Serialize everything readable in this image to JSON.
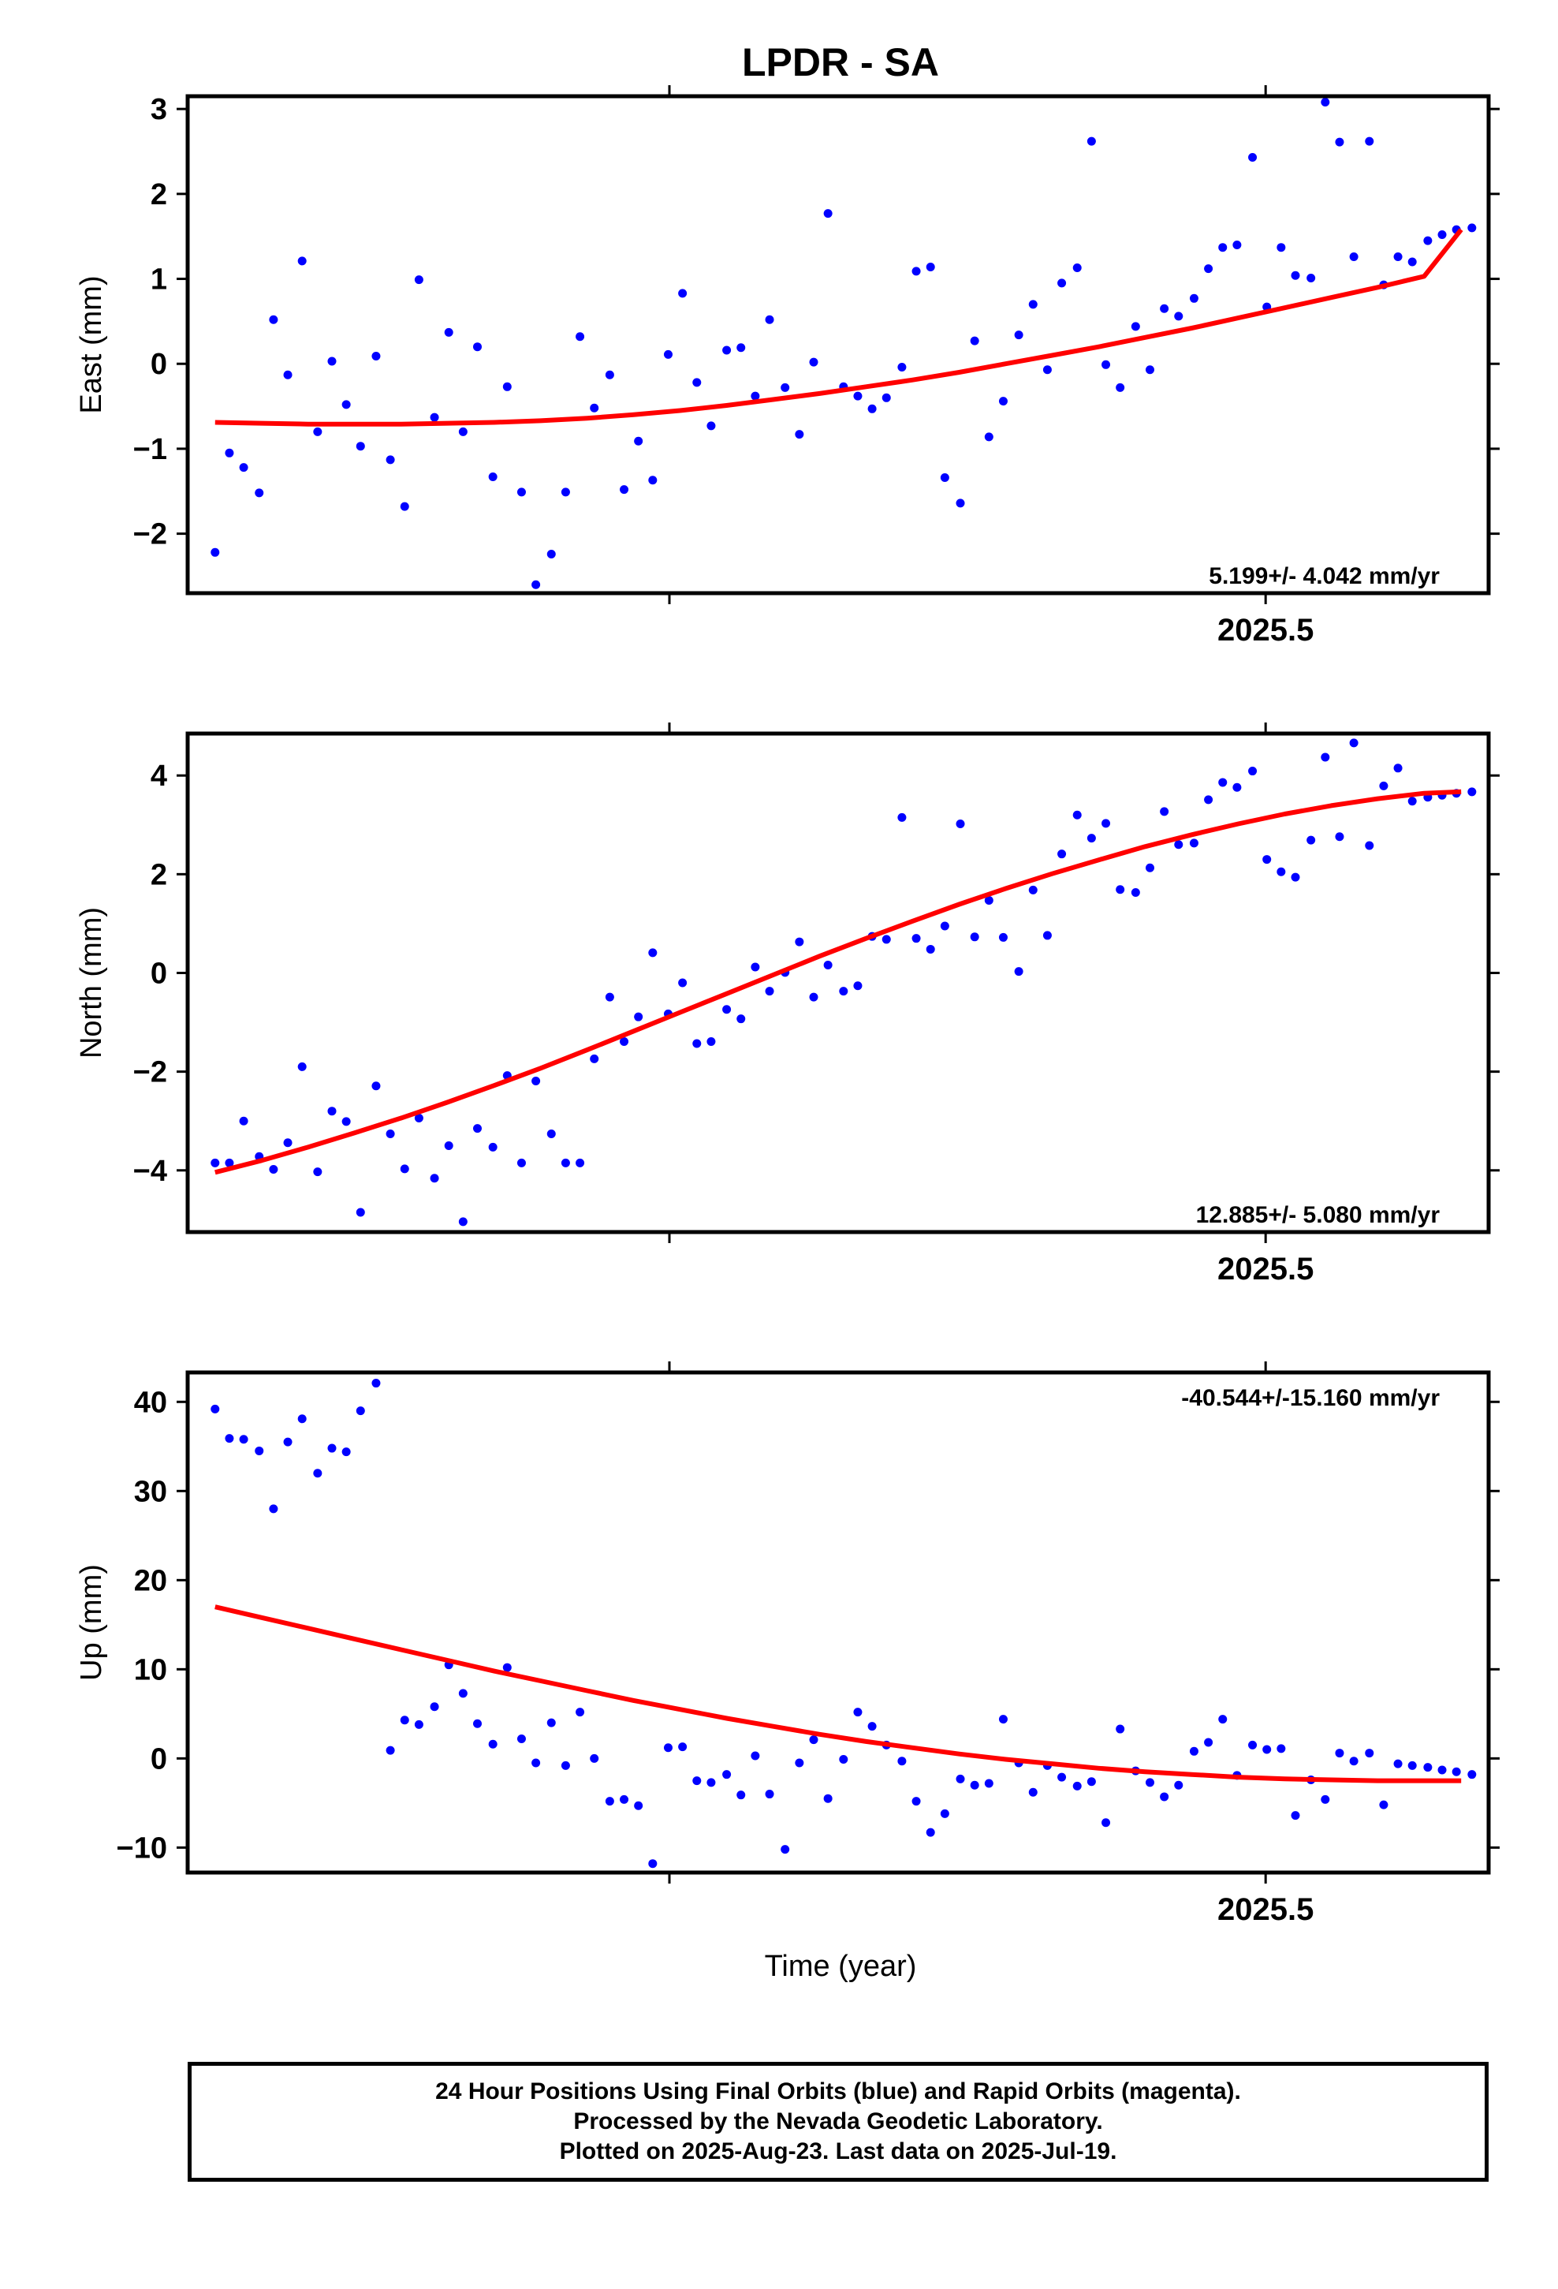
{
  "title": "LPDR - SA",
  "xlabel": "Time (year)",
  "colors": {
    "points": "#0000ff",
    "fit": "#ff0000",
    "frame": "#000000"
  },
  "footer": {
    "line1": "24 Hour Positions Using Final Orbits (blue) and Rapid Orbits (magenta).",
    "line2": "Processed by the Nevada Geodetic Laboratory.",
    "line3": "Plotted on 2025-Aug-23. Last data on 2025-Jul-19."
  },
  "chart_data": [
    {
      "type": "scatter",
      "name": "east",
      "ylabel": "East (mm)",
      "rate_label": "5.199+/- 4.042 mm/yr",
      "xlim": [
        2024.596,
        2025.687
      ],
      "ylim": [
        -2.7,
        3.15
      ],
      "yticks": [
        -2,
        -1,
        0,
        1,
        2,
        3
      ],
      "ytick_labels": [
        "−2",
        "−1",
        "0",
        "1",
        "2",
        "3"
      ],
      "xticks": [
        2025.0,
        2025.5
      ],
      "xtick_labels": [
        "",
        "2025.5"
      ],
      "series": [
        {
          "type": "scatter",
          "x": [
            2024.619,
            2024.631,
            2024.643,
            2024.656,
            2024.668,
            2024.68,
            2024.692,
            2024.705,
            2024.717,
            2024.729,
            2024.741,
            2024.754,
            2024.766,
            2024.778,
            2024.79,
            2024.803,
            2024.815,
            2024.827,
            2024.839,
            2024.852,
            2024.864,
            2024.876,
            2024.888,
            2024.901,
            2024.913,
            2024.925,
            2024.937,
            2024.95,
            2024.962,
            2024.974,
            2024.986,
            2024.999,
            2025.011,
            2025.023,
            2025.035,
            2025.048,
            2025.06,
            2025.072,
            2025.084,
            2025.097,
            2025.109,
            2025.121,
            2025.133,
            2025.146,
            2025.158,
            2025.17,
            2025.182,
            2025.195,
            2025.207,
            2025.219,
            2025.231,
            2025.244,
            2025.256,
            2025.268,
            2025.28,
            2025.293,
            2025.305,
            2025.317,
            2025.329,
            2025.342,
            2025.354,
            2025.366,
            2025.378,
            2025.391,
            2025.403,
            2025.415,
            2025.427,
            2025.44,
            2025.452,
            2025.464,
            2025.476,
            2025.489,
            2025.501,
            2025.513,
            2025.525,
            2025.538,
            2025.55,
            2025.562,
            2025.574,
            2025.587,
            2025.599,
            2025.611,
            2025.623,
            2025.636,
            2025.648,
            2025.66,
            2025.673
          ],
          "y": [
            -2.22,
            -1.05,
            -1.22,
            -1.52,
            0.52,
            -0.13,
            1.21,
            -0.8,
            0.03,
            -0.48,
            -0.97,
            0.09,
            -1.13,
            -1.68,
            0.99,
            -0.63,
            0.37,
            -0.8,
            0.2,
            -1.33,
            -0.27,
            -1.51,
            -2.6,
            -2.24,
            -1.51,
            0.32,
            -0.52,
            -0.13,
            -1.48,
            -0.91,
            -1.37,
            0.11,
            0.83,
            -0.22,
            -0.73,
            0.16,
            0.19,
            -0.38,
            0.52,
            -0.28,
            -0.83,
            0.02,
            1.77,
            -0.27,
            -0.38,
            -0.53,
            -0.4,
            -0.04,
            1.09,
            1.14,
            -1.34,
            -1.64,
            0.27,
            -0.86,
            -0.44,
            0.34,
            0.7,
            -0.07,
            0.95,
            1.13,
            2.62,
            -0.01,
            -0.28,
            0.44,
            -0.07,
            0.65,
            0.56,
            0.77,
            1.12,
            1.37,
            1.4,
            2.43,
            0.67,
            1.37,
            1.04,
            1.01,
            3.08,
            2.61,
            1.26,
            2.62,
            0.93,
            1.26,
            1.2,
            1.45,
            1.52,
            1.58,
            1.6
          ]
        },
        {
          "type": "line",
          "x": [
            2024.619,
            2024.658,
            2024.697,
            2024.736,
            2024.775,
            2024.814,
            2024.853,
            2024.892,
            2024.931,
            2024.97,
            2025.009,
            2025.048,
            2025.087,
            2025.126,
            2025.165,
            2025.204,
            2025.243,
            2025.282,
            2025.321,
            2025.36,
            2025.399,
            2025.438,
            2025.477,
            2025.516,
            2025.555,
            2025.594,
            2025.633,
            2025.664
          ],
          "y": [
            -0.69,
            -0.7,
            -0.71,
            -0.71,
            -0.71,
            -0.7,
            -0.69,
            -0.67,
            -0.64,
            -0.6,
            -0.55,
            -0.49,
            -0.42,
            -0.35,
            -0.27,
            -0.19,
            -0.1,
            0.0,
            0.1,
            0.2,
            0.31,
            0.42,
            0.54,
            0.66,
            0.78,
            0.9,
            1.03,
            1.58
          ]
        }
      ]
    },
    {
      "type": "scatter",
      "name": "north",
      "ylabel": "North (mm)",
      "rate_label": "12.885+/- 5.080 mm/yr",
      "xlim": [
        2024.596,
        2025.687
      ],
      "ylim": [
        -5.25,
        4.85
      ],
      "yticks": [
        -4,
        -2,
        0,
        2,
        4
      ],
      "ytick_labels": [
        "−4",
        "−2",
        "0",
        "2",
        "4"
      ],
      "xticks": [
        2025.0,
        2025.5
      ],
      "xtick_labels": [
        "",
        "2025.5"
      ],
      "series": [
        {
          "type": "scatter",
          "x": [
            2024.619,
            2024.631,
            2024.643,
            2024.656,
            2024.668,
            2024.68,
            2024.692,
            2024.705,
            2024.717,
            2024.729,
            2024.741,
            2024.754,
            2024.766,
            2024.778,
            2024.79,
            2024.803,
            2024.815,
            2024.827,
            2024.839,
            2024.852,
            2024.864,
            2024.876,
            2024.888,
            2024.901,
            2024.913,
            2024.925,
            2024.937,
            2024.95,
            2024.962,
            2024.974,
            2024.986,
            2024.999,
            2025.011,
            2025.023,
            2025.035,
            2025.048,
            2025.06,
            2025.072,
            2025.084,
            2025.097,
            2025.109,
            2025.121,
            2025.133,
            2025.146,
            2025.158,
            2025.17,
            2025.182,
            2025.195,
            2025.207,
            2025.219,
            2025.231,
            2025.244,
            2025.256,
            2025.268,
            2025.28,
            2025.293,
            2025.305,
            2025.317,
            2025.329,
            2025.342,
            2025.354,
            2025.366,
            2025.378,
            2025.391,
            2025.403,
            2025.415,
            2025.427,
            2025.44,
            2025.452,
            2025.464,
            2025.476,
            2025.489,
            2025.501,
            2025.513,
            2025.525,
            2025.538,
            2025.55,
            2025.562,
            2025.574,
            2025.587,
            2025.599,
            2025.611,
            2025.623,
            2025.636,
            2025.648,
            2025.66,
            2025.673
          ],
          "y": [
            -3.85,
            -3.85,
            -3.0,
            -3.72,
            -3.98,
            -3.44,
            -1.9,
            -4.03,
            -2.8,
            -3.01,
            -4.85,
            -2.29,
            -3.26,
            -3.97,
            -2.94,
            -4.16,
            -3.5,
            -5.04,
            -3.15,
            -3.53,
            -2.08,
            -3.85,
            -2.19,
            -3.26,
            -3.85,
            -3.85,
            -1.74,
            -0.49,
            -1.39,
            -0.89,
            0.41,
            -0.83,
            -0.2,
            -1.43,
            -1.39,
            -0.74,
            -0.93,
            0.12,
            -0.37,
            0.01,
            0.63,
            -0.49,
            0.16,
            -0.37,
            -0.26,
            0.74,
            0.68,
            3.15,
            0.7,
            0.48,
            0.95,
            3.02,
            0.73,
            1.47,
            0.72,
            0.03,
            1.68,
            0.76,
            2.41,
            3.2,
            2.73,
            3.03,
            1.69,
            1.63,
            2.13,
            3.27,
            2.6,
            2.63,
            3.51,
            3.86,
            3.76,
            4.09,
            2.3,
            2.05,
            1.94,
            2.69,
            4.37,
            2.76,
            4.66,
            2.58,
            3.79,
            4.15,
            3.48,
            3.56,
            3.6,
            3.64,
            3.67
          ]
        },
        {
          "type": "line",
          "x": [
            2024.619,
            2024.658,
            2024.697,
            2024.736,
            2024.775,
            2024.814,
            2024.853,
            2024.892,
            2024.931,
            2024.97,
            2025.009,
            2025.048,
            2025.087,
            2025.126,
            2025.165,
            2025.204,
            2025.243,
            2025.282,
            2025.321,
            2025.36,
            2025.399,
            2025.438,
            2025.477,
            2025.516,
            2025.555,
            2025.594,
            2025.633,
            2025.664
          ],
          "y": [
            -4.04,
            -3.8,
            -3.53,
            -3.24,
            -2.94,
            -2.62,
            -2.28,
            -1.93,
            -1.56,
            -1.18,
            -0.8,
            -0.42,
            -0.04,
            0.34,
            0.7,
            1.05,
            1.39,
            1.71,
            2.01,
            2.29,
            2.56,
            2.8,
            3.02,
            3.22,
            3.39,
            3.53,
            3.64,
            3.67
          ]
        }
      ]
    },
    {
      "type": "scatter",
      "name": "up",
      "ylabel": "Up (mm)",
      "rate_label": "-40.544+/-15.160 mm/yr",
      "xlim": [
        2024.596,
        2025.687
      ],
      "ylim": [
        -12.8,
        43.3
      ],
      "yticks": [
        -10,
        0,
        10,
        20,
        30,
        40
      ],
      "ytick_labels": [
        "−10",
        "0",
        "10",
        "20",
        "30",
        "40"
      ],
      "xticks": [
        2025.0,
        2025.5
      ],
      "xtick_labels": [
        "",
        "2025.5"
      ],
      "series": [
        {
          "type": "scatter",
          "x": [
            2024.619,
            2024.631,
            2024.643,
            2024.656,
            2024.668,
            2024.68,
            2024.692,
            2024.705,
            2024.717,
            2024.729,
            2024.741,
            2024.754,
            2024.766,
            2024.778,
            2024.79,
            2024.803,
            2024.815,
            2024.827,
            2024.839,
            2024.852,
            2024.864,
            2024.876,
            2024.888,
            2024.901,
            2024.913,
            2024.925,
            2024.937,
            2024.95,
            2024.962,
            2024.974,
            2024.986,
            2024.999,
            2025.011,
            2025.023,
            2025.035,
            2025.048,
            2025.06,
            2025.072,
            2025.084,
            2025.097,
            2025.109,
            2025.121,
            2025.133,
            2025.146,
            2025.158,
            2025.17,
            2025.182,
            2025.195,
            2025.207,
            2025.219,
            2025.231,
            2025.244,
            2025.256,
            2025.268,
            2025.28,
            2025.293,
            2025.305,
            2025.317,
            2025.329,
            2025.342,
            2025.354,
            2025.366,
            2025.378,
            2025.391,
            2025.403,
            2025.415,
            2025.427,
            2025.44,
            2025.452,
            2025.464,
            2025.476,
            2025.489,
            2025.501,
            2025.513,
            2025.525,
            2025.538,
            2025.55,
            2025.562,
            2025.574,
            2025.587,
            2025.599,
            2025.611,
            2025.623,
            2025.636,
            2025.648,
            2025.66,
            2025.673
          ],
          "y": [
            39.2,
            35.9,
            35.8,
            34.5,
            28.0,
            35.5,
            38.1,
            32.0,
            34.8,
            34.4,
            39.0,
            42.1,
            0.9,
            4.3,
            3.8,
            5.8,
            10.5,
            7.3,
            3.9,
            1.6,
            10.2,
            2.2,
            -0.5,
            4.0,
            -0.8,
            5.2,
            0.0,
            -4.8,
            -4.6,
            -5.3,
            -11.8,
            1.2,
            1.3,
            -2.5,
            -2.7,
            -1.8,
            -4.1,
            0.3,
            -4.0,
            -10.2,
            -0.5,
            2.1,
            -4.5,
            -0.1,
            5.2,
            3.6,
            1.5,
            -0.3,
            -4.8,
            -8.3,
            -6.2,
            -2.3,
            -3.0,
            -2.8,
            4.4,
            -0.5,
            -3.8,
            -0.8,
            -2.1,
            -3.1,
            -2.6,
            -7.2,
            3.3,
            -1.4,
            -2.7,
            -4.3,
            -3.0,
            0.8,
            1.8,
            4.4,
            -1.9,
            1.5,
            1.0,
            1.1,
            -6.4,
            -2.4,
            -4.6,
            0.6,
            -0.3,
            0.6,
            -5.2,
            -0.6,
            -0.8,
            -1.0,
            -1.3,
            -1.5,
            -1.8
          ]
        },
        {
          "type": "line",
          "x": [
            2024.619,
            2024.658,
            2024.697,
            2024.736,
            2024.775,
            2024.814,
            2024.853,
            2024.892,
            2024.931,
            2024.97,
            2025.009,
            2025.048,
            2025.087,
            2025.126,
            2025.165,
            2025.204,
            2025.243,
            2025.282,
            2025.321,
            2025.36,
            2025.399,
            2025.438,
            2025.477,
            2025.516,
            2025.555,
            2025.594,
            2025.633,
            2025.664
          ],
          "y": [
            17.0,
            15.8,
            14.6,
            13.4,
            12.2,
            11.0,
            9.8,
            8.7,
            7.6,
            6.5,
            5.5,
            4.5,
            3.6,
            2.7,
            1.9,
            1.2,
            0.5,
            -0.1,
            -0.6,
            -1.1,
            -1.5,
            -1.8,
            -2.1,
            -2.3,
            -2.4,
            -2.5,
            -2.5,
            -2.5
          ]
        }
      ]
    }
  ]
}
